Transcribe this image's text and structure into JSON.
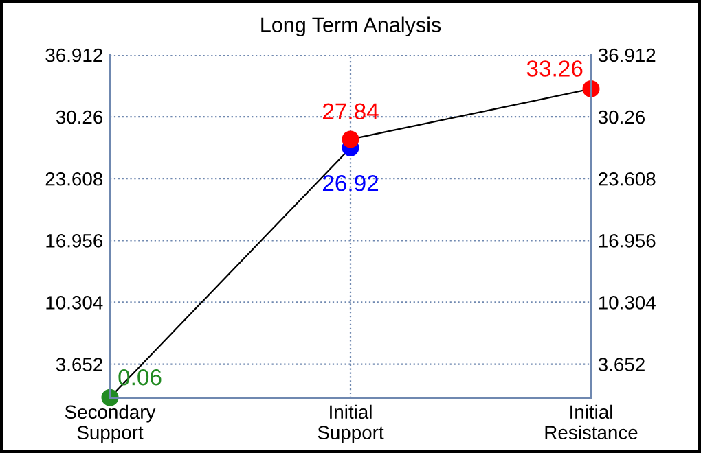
{
  "chart_data": {
    "type": "line",
    "title": "Long Term Analysis",
    "categories": [
      "Secondary\nSupport",
      "Initial\nSupport",
      "Initial\nResistance"
    ],
    "series": [
      {
        "color": "#000000",
        "x": [
          "Secondary\nSupport",
          "Initial\nSupport",
          "Initial\nSupport",
          "Initial\nResistance"
        ],
        "values": [
          0.06,
          26.92,
          27.84,
          33.26
        ],
        "colors": [
          "#228b22",
          "#0000ff",
          "#ff0000",
          "#ff0000"
        ]
      }
    ],
    "ylim": [
      0,
      36.912
    ],
    "yticks": [
      3.652,
      10.304,
      16.956,
      23.608,
      30.26,
      36.912
    ],
    "y2lim": [
      0,
      36.912
    ],
    "y2ticks": [
      3.652,
      10.304,
      16.956,
      23.608,
      30.26,
      36.912
    ],
    "grid": true,
    "data_labels": true,
    "marker": "circle"
  }
}
